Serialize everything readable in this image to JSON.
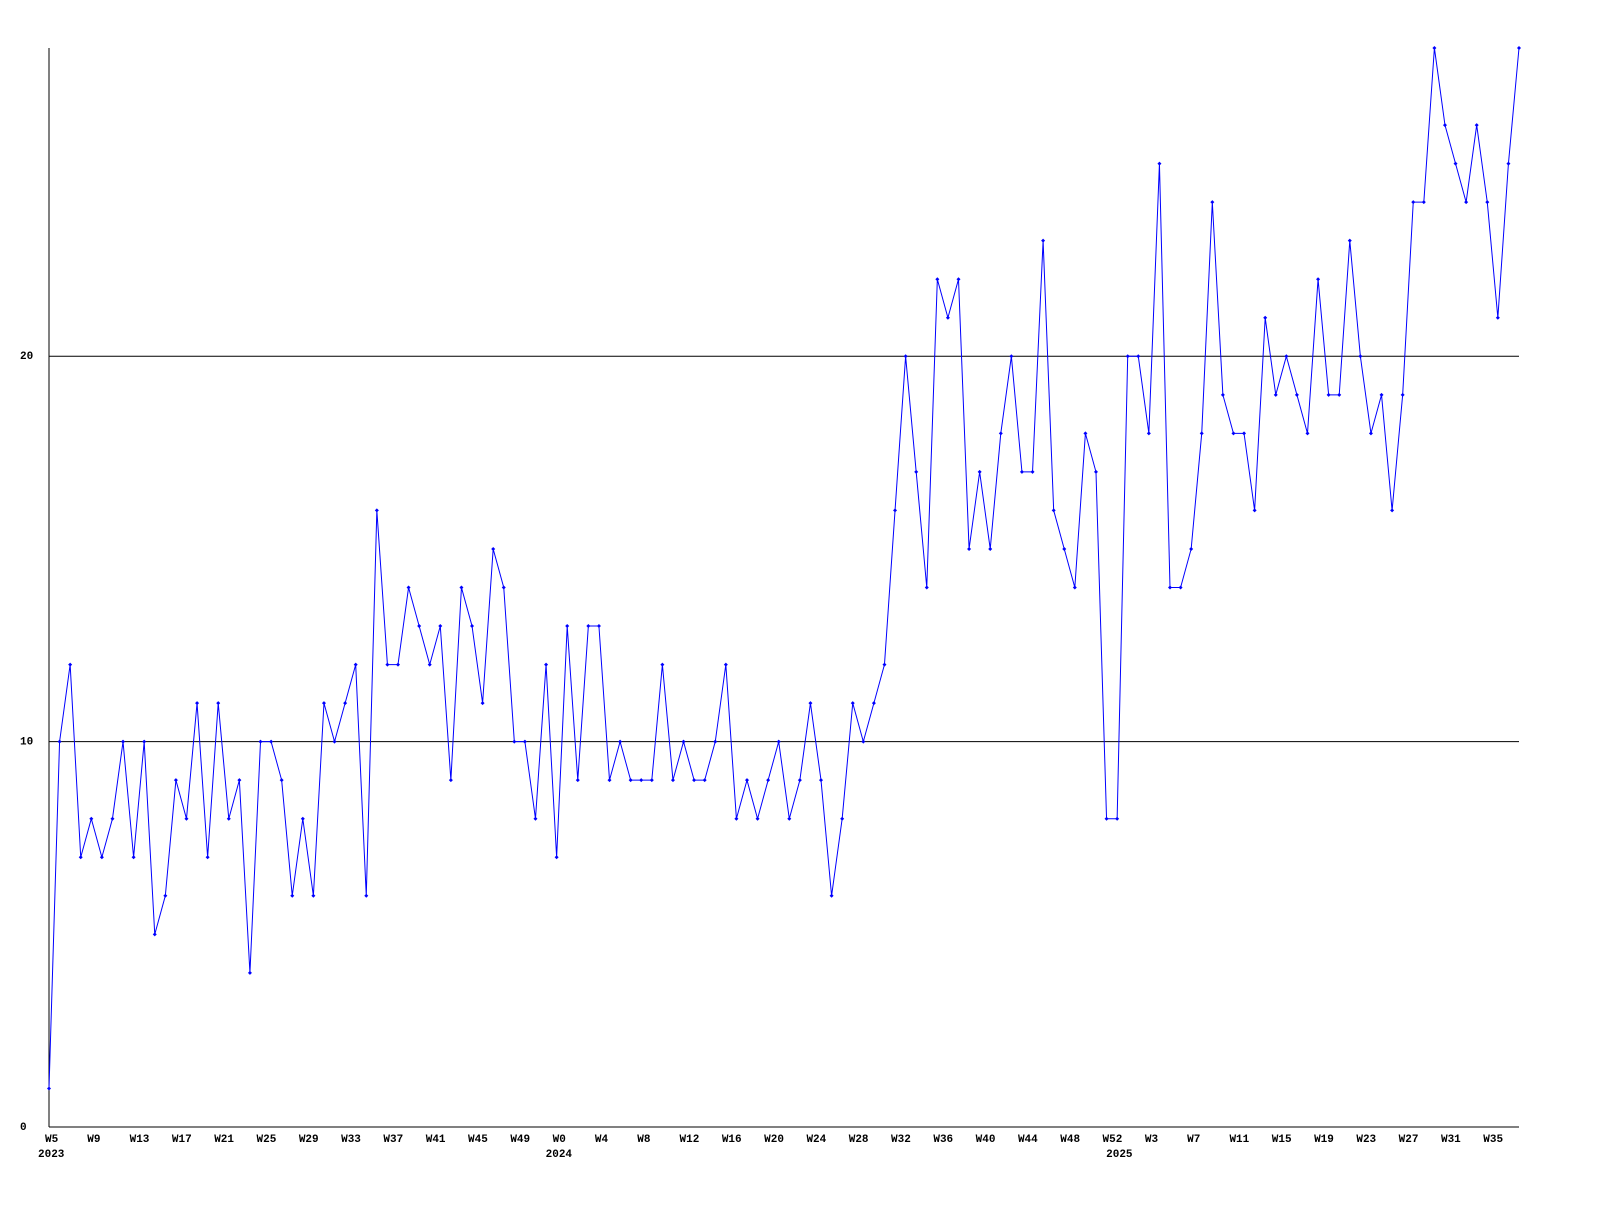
{
  "chart_data": {
    "type": "line",
    "categories": [
      "W5",
      null,
      null,
      null,
      "W9",
      null,
      null,
      null,
      "W13",
      null,
      null,
      null,
      "W17",
      null,
      null,
      null,
      "W21",
      null,
      null,
      null,
      "W25",
      null,
      null,
      null,
      "W29",
      null,
      null,
      null,
      "W33",
      null,
      null,
      null,
      "W37",
      null,
      null,
      null,
      "W41",
      null,
      null,
      null,
      "W45",
      null,
      null,
      null,
      "W49",
      null,
      null,
      null,
      "W0",
      null,
      null,
      null,
      "W4",
      null,
      null,
      null,
      "W8",
      null,
      null,
      null,
      "W12",
      null,
      null,
      null,
      "W16",
      null,
      null,
      null,
      "W20",
      null,
      null,
      null,
      "W24",
      null,
      null,
      null,
      "W28",
      null,
      null,
      null,
      "W32",
      null,
      null,
      null,
      "W36",
      null,
      null,
      null,
      "W40",
      null,
      null,
      null,
      "W44",
      null,
      null,
      null,
      "W48",
      null,
      null,
      null,
      "W52",
      null,
      null,
      null,
      "W3",
      null,
      null,
      null,
      "W7",
      null,
      null,
      null,
      "W11",
      null,
      null,
      null,
      "W15",
      null,
      null,
      null,
      "W19",
      null,
      null,
      null,
      "W23",
      null,
      null,
      null,
      "W27",
      null,
      null,
      null,
      "W31",
      null,
      null,
      null,
      "W35",
      null,
      null,
      null
    ],
    "year_categories": [
      "2023",
      null,
      null,
      null,
      null,
      null,
      null,
      null,
      null,
      null,
      null,
      null,
      null,
      null,
      null,
      null,
      null,
      null,
      null,
      null,
      null,
      null,
      null,
      null,
      null,
      null,
      null,
      null,
      null,
      null,
      null,
      null,
      null,
      null,
      null,
      null,
      null,
      null,
      null,
      null,
      null,
      null,
      null,
      null,
      null,
      null,
      null,
      null,
      "2024",
      null,
      null,
      null,
      null,
      null,
      null,
      null,
      null,
      null,
      null,
      null,
      null,
      null,
      null,
      null,
      null,
      null,
      null,
      null,
      null,
      null,
      null,
      null,
      null,
      null,
      null,
      null,
      null,
      null,
      null,
      null,
      null,
      null,
      null,
      null,
      null,
      null,
      null,
      null,
      null,
      null,
      null,
      null,
      null,
      null,
      null,
      null,
      null,
      null,
      null,
      null,
      null,
      "2025",
      null,
      null,
      null,
      null,
      null,
      null,
      null,
      null,
      null,
      null,
      null,
      null,
      null,
      null,
      null,
      null,
      null,
      null,
      null,
      null,
      null,
      null,
      null,
      null,
      null,
      null,
      null,
      null,
      null,
      null,
      null,
      null,
      null,
      null,
      null,
      null,
      null,
      null
    ],
    "series": [
      {
        "color": "#0000ff",
        "values": [
          1,
          10,
          12,
          7,
          8,
          7,
          8,
          10,
          7,
          10,
          5,
          6,
          9,
          8,
          11,
          7,
          11,
          8,
          9,
          4,
          10,
          10,
          9,
          6,
          8,
          6,
          11,
          10,
          11,
          12,
          6,
          16,
          12,
          12,
          14,
          13,
          12,
          13,
          9,
          14,
          13,
          11,
          15,
          14,
          10,
          10,
          8,
          12,
          7,
          13,
          9,
          13,
          13,
          9,
          10,
          9,
          9,
          9,
          12,
          9,
          10,
          9,
          9,
          10,
          12,
          8,
          9,
          8,
          9,
          10,
          8,
          9,
          11,
          9,
          6,
          8,
          11,
          10,
          11,
          12,
          16,
          20,
          17,
          14,
          22,
          21,
          22,
          15,
          17,
          15,
          18,
          20,
          17,
          17,
          23,
          16,
          15,
          14,
          18,
          17,
          8,
          8,
          20,
          20,
          18,
          25,
          14,
          14,
          15,
          18,
          24,
          19,
          18,
          18,
          16,
          21,
          19,
          20,
          19,
          18,
          22,
          19,
          19,
          23,
          20,
          18,
          19,
          16,
          19,
          24,
          24,
          28,
          26,
          25,
          24,
          26,
          24,
          21,
          25,
          28
        ]
      }
    ],
    "ylim": [
      0,
      28
    ],
    "yticks": [
      0,
      10,
      20
    ],
    "grid": true
  }
}
